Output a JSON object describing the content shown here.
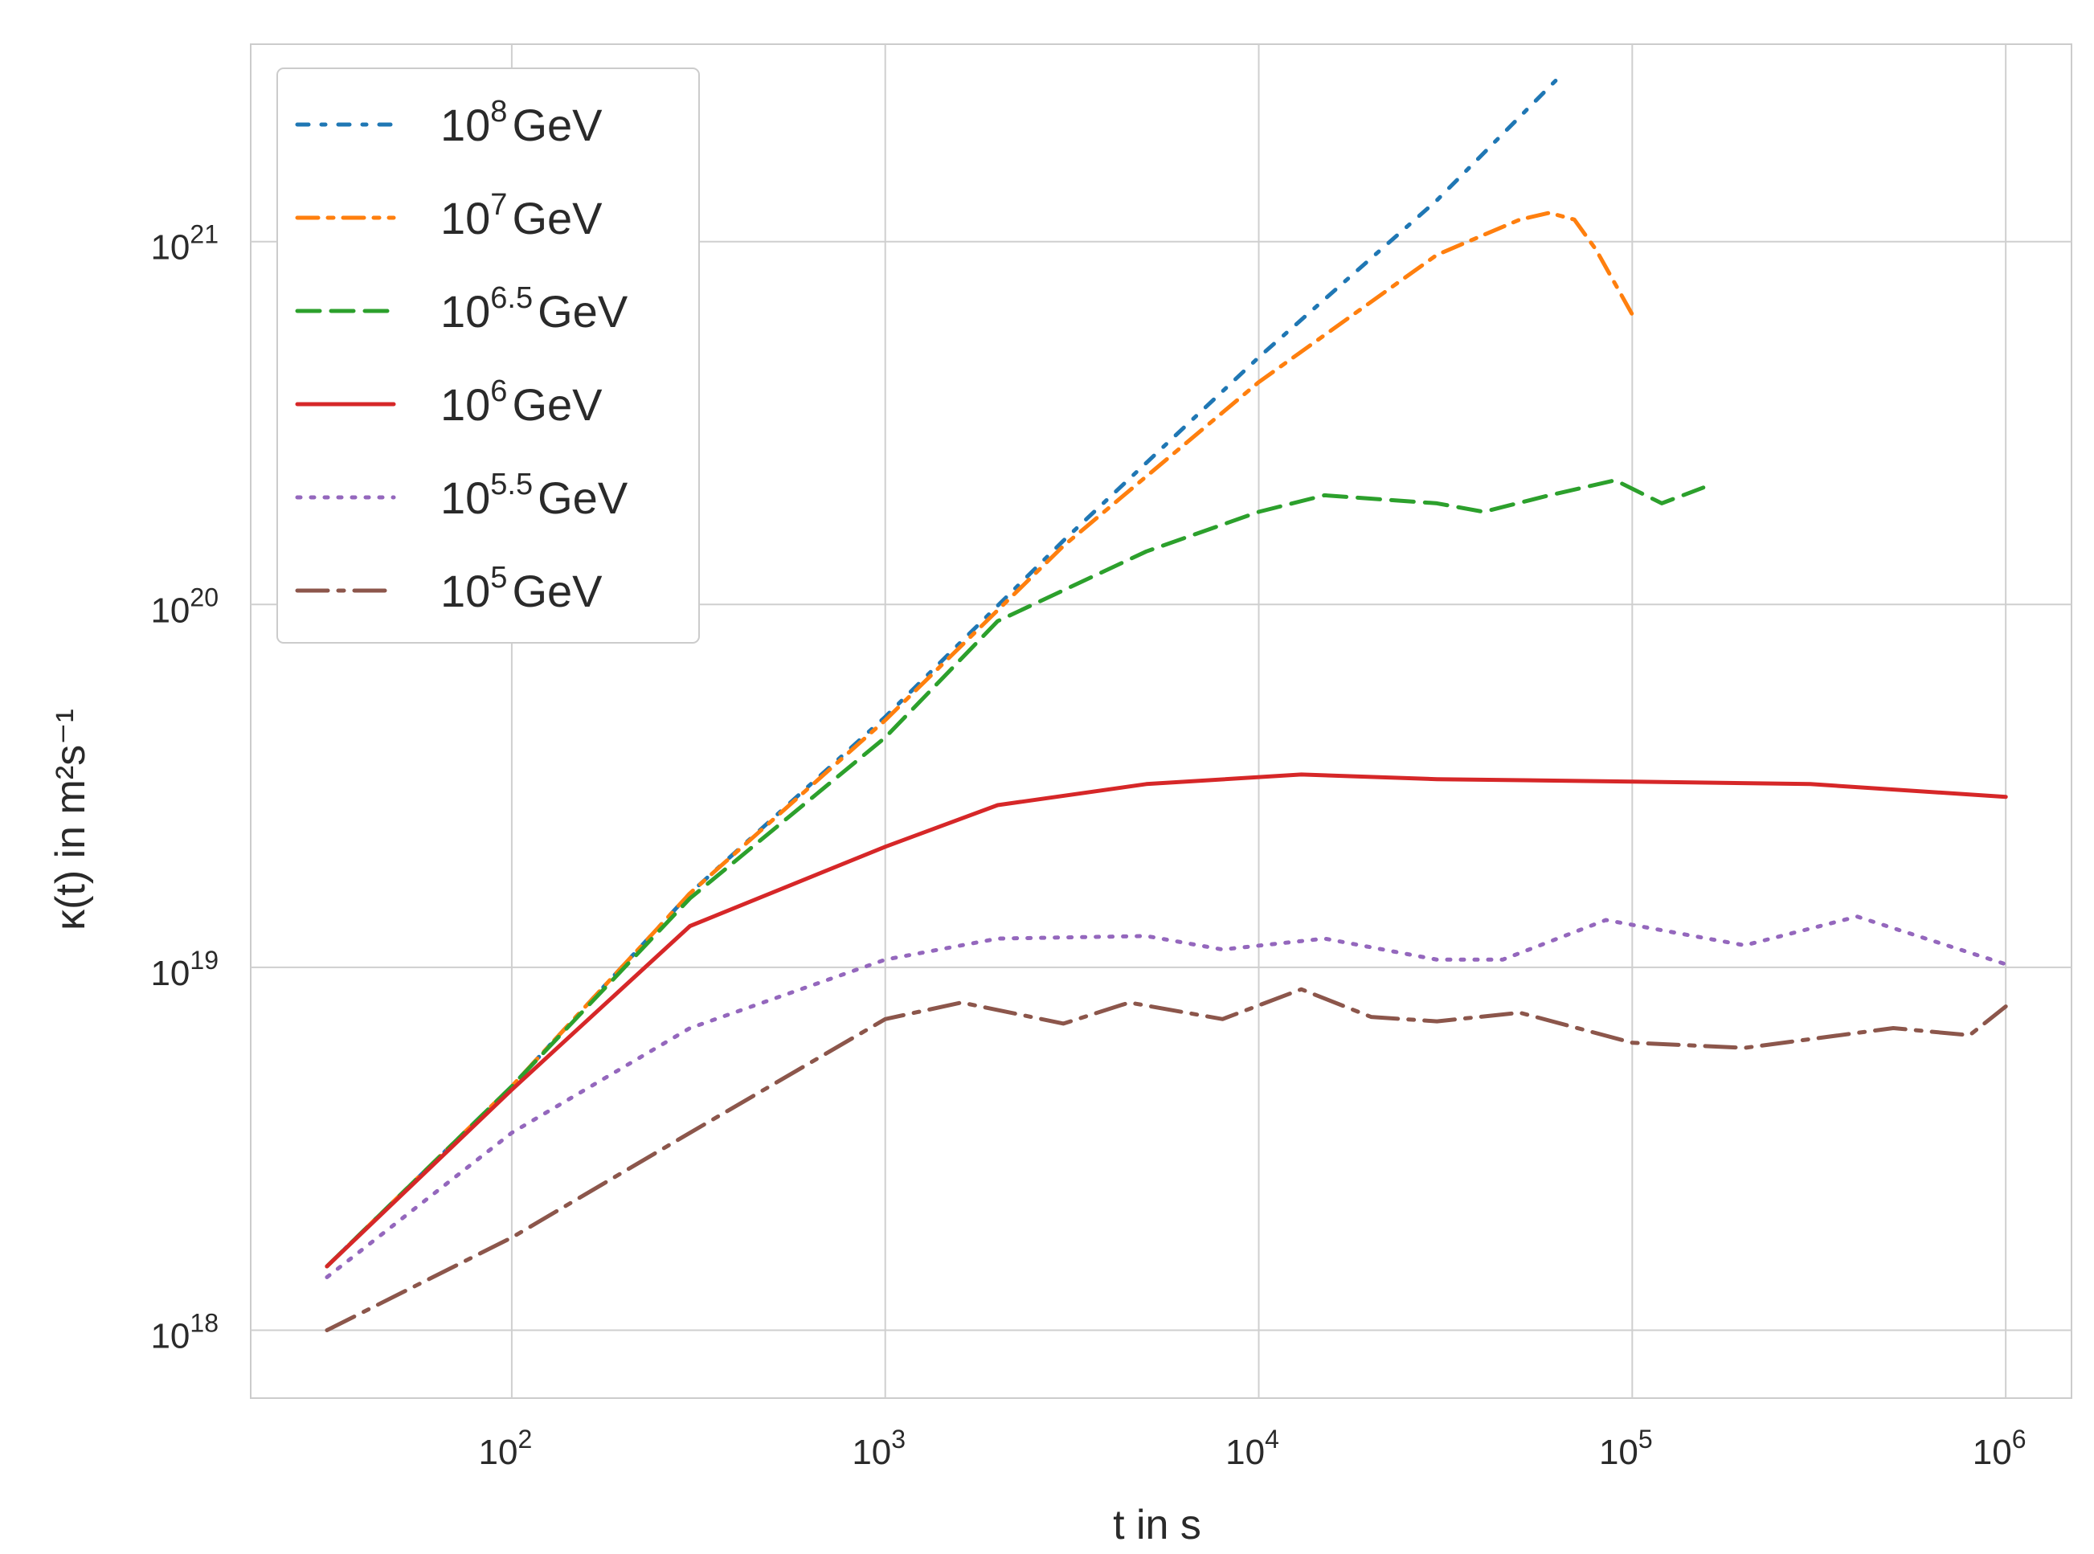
{
  "chart_data": {
    "type": "line",
    "xlabel": "t in s",
    "ylabel": "κ(t) in m²s⁻¹",
    "xscale": "log",
    "yscale": "log",
    "xlim": [
      20,
      1500000
    ],
    "ylim": [
      6.5e+17,
      3.5e+21
    ],
    "grid": true,
    "legend_position": "top-left",
    "x_ticks": [
      {
        "value": 100,
        "base": "10",
        "exp": "2"
      },
      {
        "value": 1000,
        "base": "10",
        "exp": "3"
      },
      {
        "value": 10000,
        "base": "10",
        "exp": "4"
      },
      {
        "value": 100000,
        "base": "10",
        "exp": "5"
      },
      {
        "value": 1000000,
        "base": "10",
        "exp": "6"
      }
    ],
    "y_ticks": [
      {
        "value": 1e+18,
        "base": "10",
        "exp": "18"
      },
      {
        "value": 1e+19,
        "base": "10",
        "exp": "19"
      },
      {
        "value": 1e+20,
        "base": "10",
        "exp": "20"
      },
      {
        "value": 1e+21,
        "base": "10",
        "exp": "21"
      }
    ],
    "series": [
      {
        "name": "10^8 GeV",
        "base": "10",
        "exp": "8",
        "unit": "GeV",
        "color": "#1f77b4",
        "style": "dot-dash-sparse",
        "x": [
          32,
          100,
          300,
          1000,
          3000,
          10000,
          30000,
          65000
        ],
        "y": [
          1.5e+18,
          4.7e+18,
          1.6e+19,
          4.9e+19,
          1.5e+20,
          4.8e+20,
          1.3e+21,
          2.9e+21
        ]
      },
      {
        "name": "10^7 GeV",
        "base": "10",
        "exp": "7",
        "unit": "GeV",
        "color": "#ff7f0e",
        "style": "dash-dot",
        "x": [
          32,
          100,
          300,
          1000,
          3000,
          10000,
          30000,
          50000,
          60000,
          70000,
          80000,
          100000
        ],
        "y": [
          1.5e+18,
          4.7e+18,
          1.6e+19,
          4.8e+19,
          1.45e+20,
          4.1e+20,
          9.2e+20,
          1.15e+21,
          1.2e+21,
          1.15e+21,
          9.5e+20,
          6.3e+20
        ]
      },
      {
        "name": "10^6.5 GeV",
        "base": "10",
        "exp": "6.5",
        "unit": "GeV",
        "color": "#2ca02c",
        "style": "dashed",
        "x": [
          32,
          100,
          300,
          1000,
          2000,
          5000,
          10000,
          15000,
          30000,
          40000,
          60000,
          90000,
          120000,
          155000
        ],
        "y": [
          1.5e+18,
          4.7e+18,
          1.55e+19,
          4.3e+19,
          9e+19,
          1.4e+20,
          1.8e+20,
          2e+20,
          1.9e+20,
          1.8e+20,
          2e+20,
          2.2e+20,
          1.9e+20,
          2.1e+20
        ]
      },
      {
        "name": "10^6 GeV",
        "base": "10",
        "exp": "6",
        "unit": "GeV",
        "color": "#d62728",
        "style": "solid",
        "x": [
          32,
          100,
          300,
          1000,
          2000,
          5000,
          13000,
          30000,
          100000,
          300000,
          1000000
        ],
        "y": [
          1.5e+18,
          4.6e+18,
          1.3e+19,
          2.15e+19,
          2.8e+19,
          3.2e+19,
          3.4e+19,
          3.3e+19,
          3.25e+19,
          3.2e+19,
          2.95e+19
        ]
      },
      {
        "name": "10^5.5 GeV",
        "base": "10",
        "exp": "5.5",
        "unit": "GeV",
        "color": "#9467bd",
        "style": "dotted",
        "x": [
          32,
          100,
          300,
          1000,
          2000,
          5000,
          8000,
          15000,
          30000,
          45000,
          85000,
          200000,
          400000,
          1000000
        ],
        "y": [
          1.4e+18,
          3.5e+18,
          6.8e+18,
          1.05e+19,
          1.2e+19,
          1.22e+19,
          1.12e+19,
          1.2e+19,
          1.05e+19,
          1.05e+19,
          1.35e+19,
          1.15e+19,
          1.38e+19,
          1.02e+19
        ]
      },
      {
        "name": "10^5 GeV",
        "base": "10",
        "exp": "5",
        "unit": "GeV",
        "color": "#8c564b",
        "style": "long-dash-dot",
        "x": [
          32,
          100,
          300,
          1000,
          1600,
          3000,
          4500,
          8000,
          13000,
          20000,
          30000,
          50000,
          100000,
          200000,
          500000,
          800000,
          1000000
        ],
        "y": [
          1e+18,
          1.8e+18,
          3.5e+18,
          7.2e+18,
          8e+18,
          7e+18,
          8e+18,
          7.2e+18,
          8.7e+18,
          7.3e+18,
          7.1e+18,
          7.5e+18,
          6.2e+18,
          6e+18,
          6.8e+18,
          6.5e+18,
          7.8e+18
        ]
      }
    ]
  }
}
